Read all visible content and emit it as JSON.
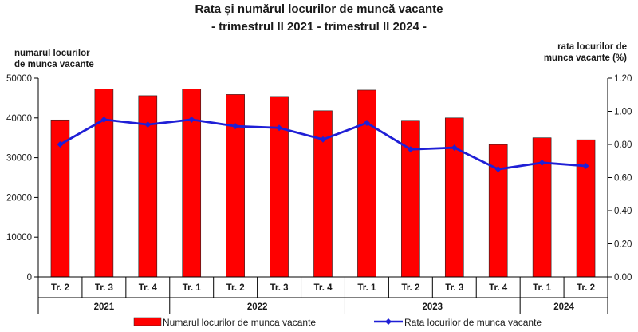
{
  "chart_data": {
    "type": "bar",
    "title": "Rata și numărul locurilor de muncă vacante",
    "subtitle": "- trimestrul II 2021 - trimestrul II 2024 -",
    "ylabel_left": [
      "numarul locurilor",
      "de munca  vacante"
    ],
    "ylabel_right": [
      "rata locurilor  de",
      "munca vacante (%)"
    ],
    "categories": [
      "Tr. 2",
      "Tr. 3",
      "Tr. 4",
      "Tr. 1",
      "Tr. 2",
      "Tr. 3",
      "Tr. 4",
      "Tr. 1",
      "Tr. 2",
      "Tr. 3",
      "Tr. 4",
      "Tr. 1",
      "Tr. 2"
    ],
    "years": [
      {
        "label": "2021",
        "start": 0,
        "count": 3
      },
      {
        "label": "2022",
        "start": 3,
        "count": 4
      },
      {
        "label": "2023",
        "start": 7,
        "count": 4
      },
      {
        "label": "2024",
        "start": 11,
        "count": 2
      }
    ],
    "ylim_left": [
      0,
      50000
    ],
    "yticks_left": [
      "0",
      "10000",
      "20000",
      "30000",
      "40000",
      "50000"
    ],
    "ylim_right": [
      0,
      1.2
    ],
    "yticks_right": [
      "0.00",
      "0.20",
      "0.40",
      "0.60",
      "0.80",
      "1.00",
      "1.20"
    ],
    "series": [
      {
        "name": "Numarul locurilor de munca vacante",
        "type": "bar",
        "axis": "left",
        "color": "#ff0000",
        "values": [
          39500,
          47300,
          45600,
          47300,
          45900,
          45400,
          41800,
          47000,
          39400,
          40000,
          33300,
          35000,
          34500
        ]
      },
      {
        "name": "Rata locurilor de munca vacante",
        "type": "line",
        "axis": "right",
        "color": "#1f1fd6",
        "values": [
          0.8,
          0.95,
          0.92,
          0.95,
          0.91,
          0.9,
          0.83,
          0.93,
          0.77,
          0.78,
          0.65,
          0.69,
          0.67
        ]
      }
    ],
    "legend_position": "bottom"
  }
}
